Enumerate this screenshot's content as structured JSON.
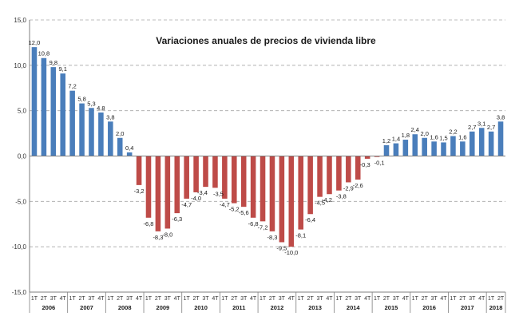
{
  "chart_data": {
    "type": "bar",
    "title": "Variaciones anuales de precios de vivienda libre",
    "xlabel": "",
    "ylabel": "",
    "ylim": [
      -15,
      15
    ],
    "yticks": [
      "15,0",
      "10,0",
      "5,0",
      "0,0",
      "-5,0",
      "-10,0",
      "-15,0"
    ],
    "grid": "horizontal-dashed",
    "colors": {
      "positive": "#4a7ebb",
      "negative": "#be4b48",
      "axis": "#7f7f7f",
      "grid": "#a6a6a6"
    },
    "years": [
      "2006",
      "2007",
      "2008",
      "2009",
      "2010",
      "2011",
      "2012",
      "2013",
      "2014",
      "2015",
      "2016",
      "2017",
      "2018"
    ],
    "categories": [
      "1T",
      "2T",
      "3T",
      "4T",
      "1T",
      "2T",
      "3T",
      "4T",
      "1T",
      "2T",
      "3T",
      "4T",
      "1T",
      "2T",
      "3T",
      "4T",
      "1T",
      "2T",
      "3T",
      "4T",
      "1T",
      "2T",
      "3T",
      "4T",
      "1T",
      "2T",
      "3T",
      "4T",
      "1T",
      "2T",
      "3T",
      "4T",
      "1T",
      "2T",
      "3T",
      "4T",
      "1T",
      "2T",
      "3T",
      "4T",
      "1T",
      "2T",
      "3T",
      "4T",
      "1T",
      "2T",
      "3T",
      "4T",
      "1T",
      "2T"
    ],
    "values": [
      12.0,
      10.8,
      9.8,
      9.1,
      7.2,
      5.8,
      5.3,
      4.8,
      3.8,
      2.0,
      0.4,
      -3.2,
      -6.8,
      -8.3,
      -8.0,
      -6.3,
      -4.7,
      -4.0,
      -3.4,
      -3.5,
      -4.7,
      -5.2,
      -5.6,
      -6.8,
      -7.2,
      -8.3,
      -9.5,
      -10.0,
      -8.1,
      -6.4,
      -4.5,
      -4.2,
      -3.8,
      -2.9,
      -2.6,
      -0.3,
      -0.1,
      1.2,
      1.4,
      1.8,
      2.4,
      2.0,
      1.6,
      1.5,
      2.2,
      1.6,
      2.7,
      3.1,
      2.7,
      3.8
    ],
    "labels": [
      "12,0",
      "10,8",
      "9,8",
      "9,1",
      "7,2",
      "5,8",
      "5,3",
      "4,8",
      "3,8",
      "2,0",
      "0,4",
      "-3,2",
      "-6,8",
      "-8,3",
      "-8,0",
      "-6,3",
      "-4,7",
      "-4,0",
      "-3,4",
      "-3,5",
      "-4,7",
      "-5,2",
      "-5,6",
      "-6,8",
      "-7,2",
      "-8,3",
      "-9,5",
      "-10,0",
      "-8,1",
      "-6,4",
      "-4,5",
      "-4,2",
      "-3,8",
      "-2,9",
      "-2,6",
      "-0,3",
      "-0,1",
      "1,2",
      "1,4",
      "1,8",
      "2,4",
      "2,0",
      "1,6",
      "1,5",
      "2,2",
      "1,6",
      "2,7",
      "3,1",
      "2,7",
      "3,8"
    ]
  }
}
